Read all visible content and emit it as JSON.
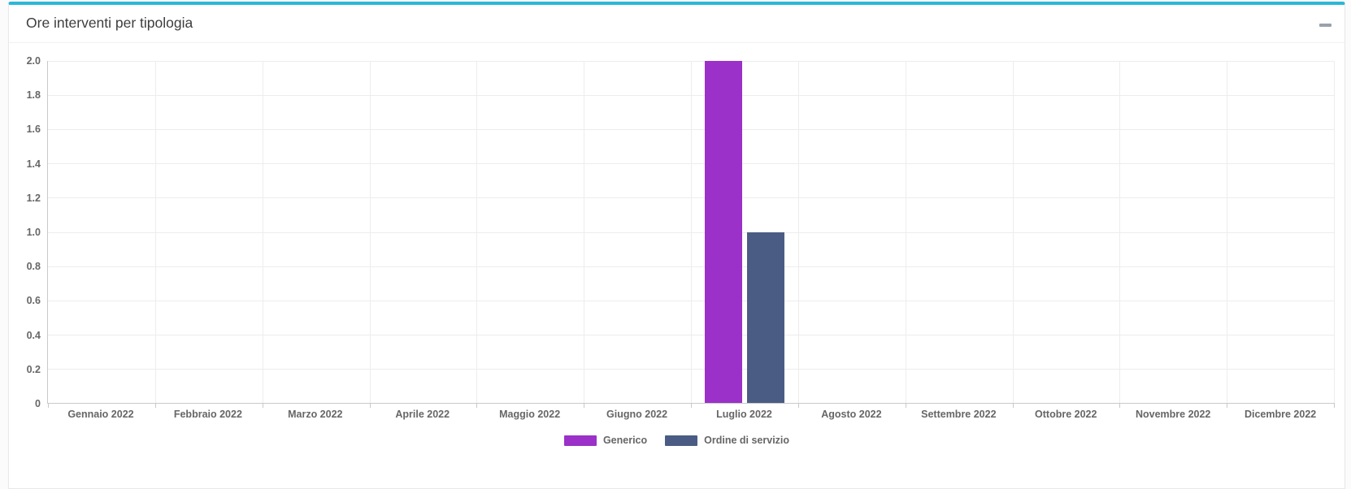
{
  "panel": {
    "title": "Ore interventi per tipologia",
    "accent_color": "#29b8d9",
    "collapse_icon": "minus"
  },
  "chart_data": {
    "type": "bar",
    "title": "Ore interventi per tipologia",
    "categories": [
      "Gennaio 2022",
      "Febbraio 2022",
      "Marzo 2022",
      "Aprile 2022",
      "Maggio 2022",
      "Giugno 2022",
      "Luglio 2022",
      "Agosto 2022",
      "Settembre 2022",
      "Ottobre 2022",
      "Novembre 2022",
      "Dicembre 2022"
    ],
    "series": [
      {
        "name": "Generico",
        "color": "#9b31c8",
        "values": [
          0,
          0,
          0,
          0,
          0,
          0,
          2,
          0,
          0,
          0,
          0,
          0
        ]
      },
      {
        "name": "Ordine di servizio",
        "color": "#4b5c84",
        "values": [
          0,
          0,
          0,
          0,
          0,
          0,
          1,
          0,
          0,
          0,
          0,
          0
        ]
      }
    ],
    "xlabel": "",
    "ylabel": "",
    "ylim": [
      0,
      2
    ],
    "ytick_values": [
      0,
      0.2,
      0.4,
      0.6,
      0.8,
      1.0,
      1.2,
      1.4,
      1.6,
      1.8,
      2.0
    ],
    "ytick_labels": [
      "0",
      "0.2",
      "0.4",
      "0.6",
      "0.8",
      "1.0",
      "1.2",
      "1.4",
      "1.6",
      "1.8",
      "2.0"
    ],
    "grid": true,
    "legend_position": "bottom",
    "axis_color": "#c9c9c9",
    "grid_color": "#ededed",
    "tick_text_color": "#666666"
  }
}
